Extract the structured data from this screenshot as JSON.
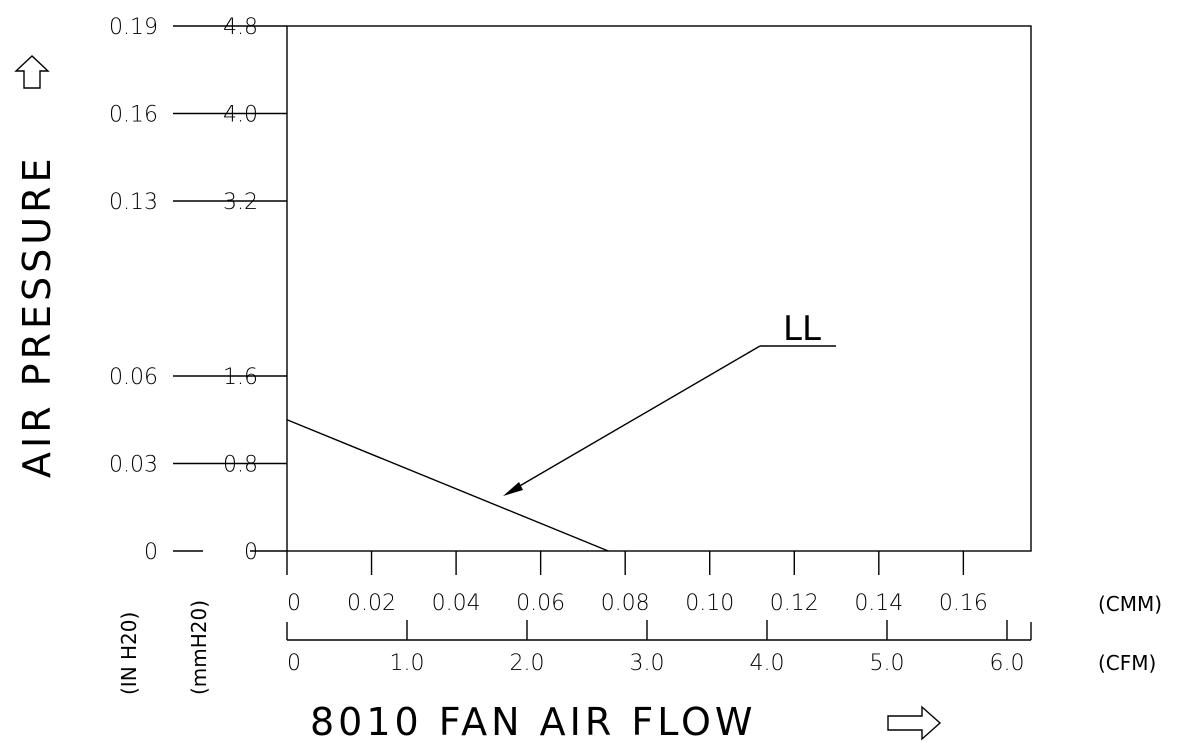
{
  "chart_data": {
    "type": "line",
    "title": "",
    "xlabel": "8010 FAN AIR FLOW",
    "ylabel": "AIR PRESSURE",
    "x_axes": [
      {
        "unit": "(CMM)",
        "ticks": [
          "0",
          "0.02",
          "0.04",
          "0.06",
          "0.08",
          "0.10",
          "0.12",
          "0.14",
          "0.16"
        ],
        "range": [
          0,
          0.176
        ]
      },
      {
        "unit": "(CFM)",
        "ticks": [
          "0",
          "1.0",
          "2.0",
          "3.0",
          "4.0",
          "5.0",
          "6.0"
        ],
        "range": [
          0,
          6.2
        ]
      }
    ],
    "y_axes": [
      {
        "unit": "(IN H20)",
        "ticks": [
          "0",
          "0.03",
          "0.06",
          "0.13",
          "0.16",
          "0.19"
        ]
      },
      {
        "unit": "(mmH20)",
        "ticks": [
          "0",
          "0.8",
          "1.6",
          "3.2",
          "4.0",
          "4.8"
        ],
        "range": [
          0,
          4.8
        ]
      }
    ],
    "series": [
      {
        "name": "LL",
        "x_cmm": [
          0,
          0.076
        ],
        "y_mmh2o": [
          1.2,
          0
        ]
      }
    ],
    "grid": false,
    "legend": "annotation arrow"
  }
}
